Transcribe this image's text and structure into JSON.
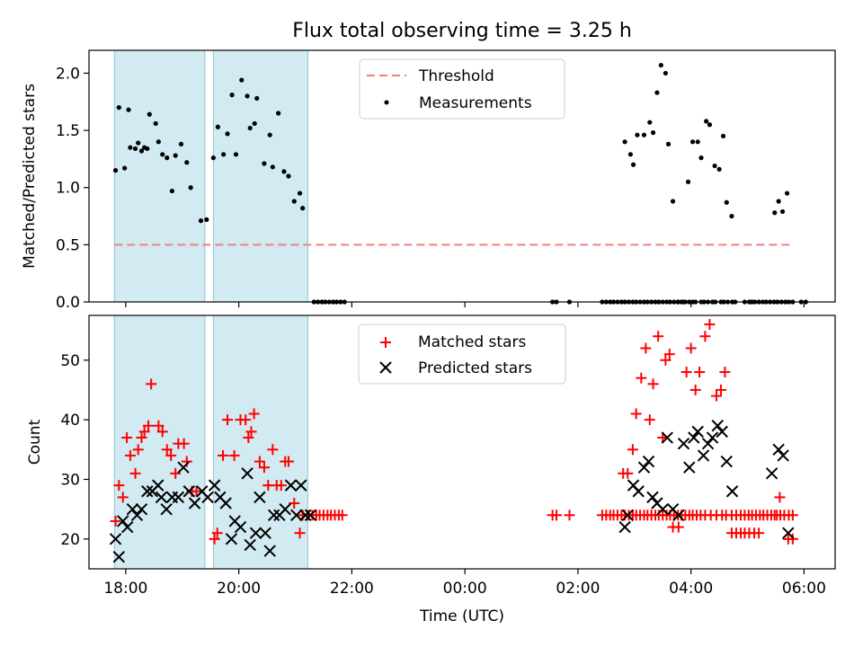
{
  "chart_data": [
    {
      "type": "scatter",
      "title": "Flux total observing time = 3.25 h",
      "xlabel": "",
      "ylabel": "Matched/Predicted stars",
      "xlim": [
        17.35,
        30.55
      ],
      "ylim": [
        0,
        2.2
      ],
      "yticks": [
        0,
        0.5,
        1,
        1.5,
        2
      ],
      "ytick_labels": [
        "0.0",
        "0.5",
        "1.0",
        "1.5",
        "2.0"
      ],
      "legend": {
        "placement": "top-center",
        "entries": [
          "Threshold",
          "Measurements"
        ]
      },
      "shaded_intervals": [
        [
          17.8,
          19.4
        ],
        [
          19.55,
          21.22
        ]
      ],
      "threshold": {
        "name": "Threshold",
        "y": 0.5,
        "x_range": [
          17.8,
          29.8
        ],
        "color": "#f08080"
      },
      "series": [
        {
          "name": "Measurements",
          "color": "#000000",
          "x": [
            17.82,
            17.88,
            17.98,
            18.05,
            18.08,
            18.17,
            18.22,
            18.28,
            18.33,
            18.38,
            18.42,
            18.53,
            18.58,
            18.65,
            18.73,
            18.82,
            18.88,
            18.98,
            19.08,
            19.15,
            19.33,
            19.43,
            19.55,
            19.63,
            19.73,
            19.8,
            19.88,
            19.95,
            20.05,
            20.15,
            20.2,
            20.28,
            20.32,
            20.45,
            20.55,
            20.6,
            20.7,
            20.8,
            20.88,
            20.98,
            21.08,
            21.13,
            21.33,
            21.4,
            21.47,
            21.53,
            21.6,
            21.67,
            21.73,
            21.8,
            21.87,
            25.55,
            25.62,
            25.85,
            26.43,
            26.5,
            26.57,
            26.63,
            26.7,
            26.77,
            26.83,
            26.9,
            26.97,
            27.03,
            27.1,
            27.17,
            27.23,
            27.3,
            27.37,
            27.43,
            27.5,
            27.57,
            27.63,
            27.7,
            27.77,
            27.83,
            27.9,
            27.97,
            28.03,
            28.08,
            28.18,
            28.23,
            28.3,
            28.38,
            28.43,
            28.53,
            28.58,
            28.65,
            28.73,
            28.78,
            29.03,
            29.08,
            29.13,
            29.2,
            29.27,
            29.33,
            29.4,
            29.47,
            29.53,
            29.6,
            29.67,
            29.73,
            29.8,
            28.95,
            29.07,
            30.03
          ],
          "y": [
            1.15,
            1.7,
            1.17,
            1.68,
            1.35,
            1.34,
            1.39,
            1.32,
            1.35,
            1.34,
            1.64,
            1.56,
            1.4,
            1.29,
            1.26,
            0.97,
            1.28,
            1.38,
            1.22,
            1.0,
            0.71,
            0.72,
            1.26,
            1.53,
            1.29,
            1.47,
            1.81,
            1.29,
            1.94,
            1.8,
            1.52,
            1.56,
            1.78,
            1.21,
            1.46,
            1.18,
            1.65,
            1.14,
            1.1,
            0.88,
            0.95,
            0.82,
            0,
            0,
            0,
            0,
            0,
            0,
            0,
            0,
            0,
            0,
            0,
            0,
            0,
            0,
            0,
            0,
            0,
            0,
            0,
            0,
            0,
            0,
            0,
            0,
            0,
            0,
            0,
            0,
            0,
            0,
            0,
            0,
            0,
            0,
            0,
            0,
            0,
            0,
            0,
            0,
            0,
            0,
            0,
            0,
            0,
            0,
            0,
            0,
            0,
            0,
            0,
            0,
            0,
            0,
            0,
            0,
            0,
            0,
            0,
            0,
            0,
            0,
            0,
            0
          ],
          "note_extra": [
            [
              26.83,
              1.4
            ],
            [
              26.93,
              1.29
            ],
            [
              26.98,
              1.2
            ],
            [
              27.05,
              1.46
            ],
            [
              27.17,
              1.46
            ],
            [
              27.27,
              1.57
            ],
            [
              27.33,
              1.48
            ],
            [
              27.4,
              1.83
            ],
            [
              27.47,
              2.07
            ],
            [
              27.55,
              2.0
            ],
            [
              27.6,
              1.38
            ],
            [
              27.68,
              0.88
            ],
            [
              27.77,
              0.0
            ],
            [
              27.87,
              0.0
            ],
            [
              27.95,
              1.05
            ],
            [
              28.03,
              1.4
            ],
            [
              28.12,
              1.4
            ],
            [
              28.18,
              1.26
            ],
            [
              28.27,
              1.58
            ],
            [
              28.33,
              1.55
            ],
            [
              28.42,
              1.19
            ],
            [
              28.5,
              1.16
            ],
            [
              28.57,
              1.45
            ],
            [
              28.63,
              0.87
            ],
            [
              28.72,
              0.75
            ],
            [
              29.48,
              0.78
            ],
            [
              29.55,
              0.88
            ],
            [
              29.62,
              0.79
            ],
            [
              29.7,
              0.95
            ],
            [
              29.95,
              0.0
            ]
          ]
        }
      ]
    },
    {
      "type": "scatter",
      "title": "",
      "xlabel": "Time (UTC)",
      "ylabel": "Count",
      "xlim": [
        17.35,
        30.55
      ],
      "ylim": [
        15,
        57.5
      ],
      "yticks": [
        20,
        30,
        40,
        50
      ],
      "ytick_labels": [
        "20",
        "30",
        "40",
        "50"
      ],
      "xticks": [
        18,
        20,
        22,
        24,
        26,
        28,
        30
      ],
      "xtick_labels": [
        "18:00",
        "20:00",
        "22:00",
        "00:00",
        "02:00",
        "04:00",
        "06:00"
      ],
      "legend": {
        "placement": "top-center",
        "entries": [
          "Matched stars",
          "Predicted stars"
        ]
      },
      "shaded_intervals": [
        [
          17.8,
          19.4
        ],
        [
          19.55,
          21.22
        ]
      ],
      "series": [
        {
          "name": "Matched stars",
          "marker": "+",
          "color": "#ff0000",
          "x": [
            17.82,
            17.88,
            17.95,
            18.02,
            18.08,
            18.17,
            18.22,
            18.28,
            18.33,
            18.4,
            18.45,
            18.58,
            18.65,
            18.73,
            18.8,
            18.88,
            18.93,
            19.03,
            19.08,
            19.17,
            19.25,
            19.57,
            19.62,
            19.72,
            19.8,
            19.92,
            20.03,
            20.12,
            20.17,
            20.22,
            20.27,
            20.37,
            20.45,
            20.52,
            20.6,
            20.67,
            20.75,
            20.82,
            20.88,
            20.98,
            21.08,
            21.13,
            21.22,
            21.3,
            21.37,
            21.43,
            21.5,
            21.57,
            21.63,
            21.7,
            21.77,
            21.83,
            25.55,
            25.62,
            25.85,
            26.43,
            26.5,
            26.57,
            26.63,
            26.7,
            26.77,
            26.83,
            26.9,
            26.97,
            27.03,
            27.1,
            27.17,
            27.23,
            27.3,
            27.37,
            27.43,
            27.5,
            27.57,
            27.63,
            27.7,
            27.77,
            27.83,
            27.9,
            27.97,
            28.03,
            28.1,
            28.17,
            28.25,
            28.35,
            28.45,
            28.55,
            28.62,
            28.72,
            28.8,
            28.88,
            28.95,
            29.02,
            29.08,
            29.15,
            29.22,
            29.28,
            29.35,
            29.42,
            29.52,
            29.58,
            29.65,
            29.73,
            29.8
          ],
          "y": [
            23,
            29,
            27,
            37,
            34,
            31,
            35,
            37,
            38,
            39,
            46,
            39,
            38,
            35,
            34,
            31,
            36,
            36,
            33,
            28,
            28,
            20,
            21,
            34,
            40,
            34,
            40,
            40,
            37,
            38,
            41,
            33,
            32,
            29,
            35,
            29,
            29,
            33,
            33,
            26,
            21,
            24,
            24,
            24,
            24,
            24,
            24,
            24,
            24,
            24,
            24,
            24,
            24,
            24,
            24,
            24,
            24,
            24,
            24,
            24,
            24,
            24,
            24,
            24,
            24,
            24,
            24,
            24,
            24,
            24,
            24,
            24,
            24,
            24,
            24,
            24,
            24,
            24,
            24,
            24,
            24,
            24,
            24,
            24,
            24,
            24,
            24,
            24,
            24,
            24,
            24,
            24,
            24,
            24,
            24,
            24,
            24,
            24,
            24,
            24,
            24,
            24,
            24
          ],
          "note_extra": [
            [
              26.8,
              31
            ],
            [
              26.88,
              31
            ],
            [
              26.97,
              35
            ],
            [
              27.03,
              41
            ],
            [
              27.12,
              47
            ],
            [
              27.2,
              52
            ],
            [
              27.27,
              40
            ],
            [
              27.33,
              46
            ],
            [
              27.42,
              54
            ],
            [
              27.5,
              37
            ],
            [
              27.55,
              50
            ],
            [
              27.62,
              51
            ],
            [
              27.68,
              22
            ],
            [
              27.78,
              22
            ],
            [
              27.92,
              48
            ],
            [
              28.0,
              52
            ],
            [
              28.08,
              45
            ],
            [
              28.15,
              48
            ],
            [
              28.25,
              54
            ],
            [
              28.33,
              56
            ],
            [
              28.45,
              44
            ],
            [
              28.53,
              45
            ],
            [
              28.6,
              48
            ],
            [
              28.72,
              21
            ],
            [
              28.8,
              21
            ],
            [
              28.88,
              21
            ],
            [
              28.95,
              21
            ],
            [
              29.03,
              21
            ],
            [
              29.12,
              21
            ],
            [
              29.2,
              21
            ],
            [
              29.48,
              24
            ],
            [
              29.57,
              27
            ],
            [
              29.72,
              20
            ],
            [
              29.8,
              20
            ]
          ]
        },
        {
          "name": "Predicted stars",
          "marker": "x",
          "color": "#000000",
          "x": [
            17.82,
            17.88,
            17.95,
            18.03,
            18.12,
            18.2,
            18.28,
            18.38,
            18.47,
            18.57,
            18.63,
            18.72,
            18.82,
            18.93,
            19.02,
            19.12,
            19.22,
            19.35,
            19.45,
            19.57,
            19.67,
            19.77,
            19.87,
            19.93,
            20.03,
            20.15,
            20.2,
            20.3,
            20.37,
            20.47,
            20.55,
            20.62,
            20.72,
            20.82,
            20.92,
            21.02,
            21.1,
            21.18,
            21.27,
            26.83,
            26.88,
            26.98,
            27.07,
            27.17,
            27.25,
            27.32,
            27.4,
            27.5,
            27.58,
            27.68,
            27.78,
            27.87,
            27.97,
            28.05,
            28.12,
            28.22,
            28.3,
            28.38,
            28.47,
            28.55,
            28.63,
            28.73,
            29.43,
            29.55,
            29.63,
            29.72
          ],
          "y": [
            20,
            17,
            23,
            22,
            25,
            24,
            25,
            28,
            28,
            29,
            27,
            25,
            27,
            27,
            32,
            28,
            26,
            28,
            27,
            29,
            27,
            26,
            20,
            23,
            22,
            31,
            19,
            21,
            27,
            21,
            18,
            24,
            24,
            25,
            29,
            24,
            29,
            24,
            24,
            22,
            24,
            29,
            28,
            32,
            33,
            27,
            26,
            25,
            37,
            25,
            24,
            36,
            32,
            37,
            38,
            34,
            36,
            37,
            39,
            38,
            33,
            28,
            31,
            35,
            34,
            21
          ],
          "note_extra": []
        }
      ]
    }
  ]
}
